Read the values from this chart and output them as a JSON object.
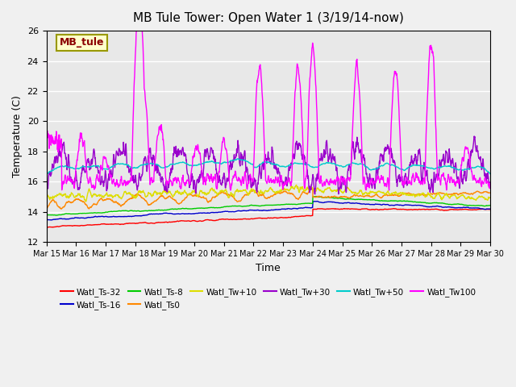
{
  "title": "MB Tule Tower: Open Water 1 (3/19/14-now)",
  "xlabel": "Time",
  "ylabel": "Temperature (C)",
  "ylim": [
    12,
    26
  ],
  "yticks": [
    12,
    14,
    16,
    18,
    20,
    22,
    24,
    26
  ],
  "xlim": [
    0,
    15
  ],
  "xtick_labels": [
    "Mar 15",
    "Mar 16",
    "Mar 17",
    "Mar 18",
    "Mar 19",
    "Mar 20",
    "Mar 21",
    "Mar 22",
    "Mar 23",
    "Mar 24",
    "Mar 25",
    "Mar 26",
    "Mar 27",
    "Mar 28",
    "Mar 29",
    "Mar 30"
  ],
  "xtick_positions": [
    0,
    1,
    2,
    3,
    4,
    5,
    6,
    7,
    8,
    9,
    10,
    11,
    12,
    13,
    14,
    15
  ],
  "legend_label": "MB_tule",
  "series_colors": {
    "Watl_Ts-32": "#ff0000",
    "Watl_Ts-16": "#0000cc",
    "Watl_Ts-8": "#00cc00",
    "Watl_Ts0": "#ff8800",
    "Watl_Tw+10": "#dddd00",
    "Watl_Tw+30": "#9900cc",
    "Watl_Tw+50": "#00cccc",
    "Watl_Tw100": "#ff00ff"
  },
  "background_color": "#e8e8e8",
  "axes_bg_color": "#e8e8e8",
  "grid_color": "#ffffff"
}
